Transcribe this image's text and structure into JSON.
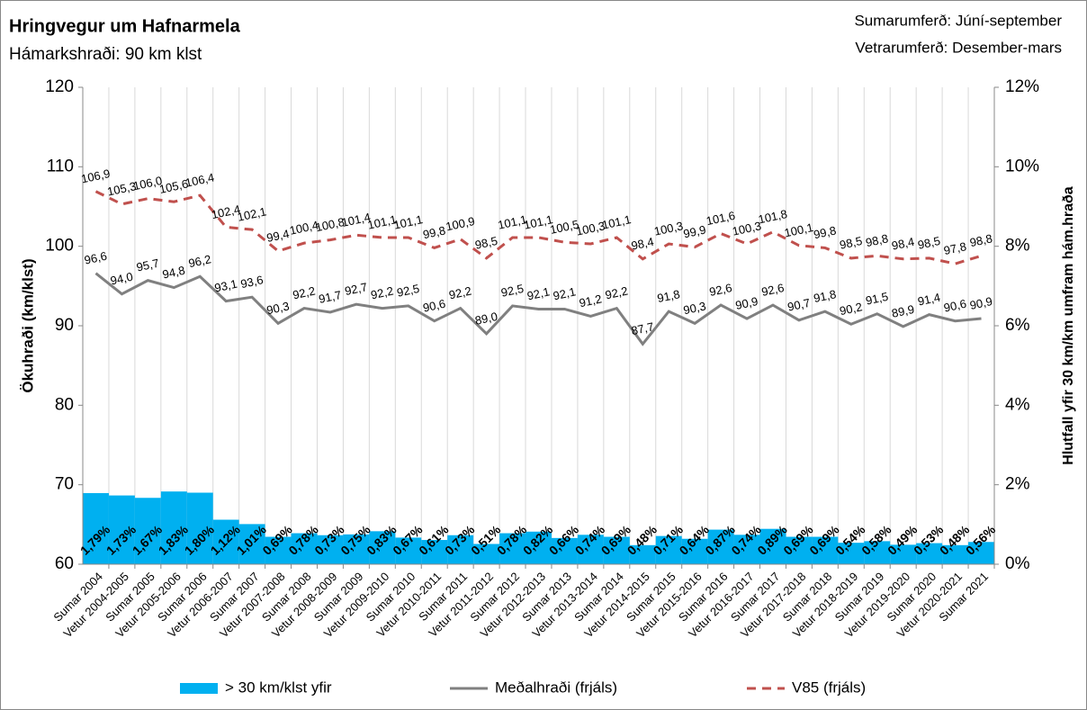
{
  "chart_data": {
    "type": "bar-line",
    "title": "Hringvegur um Hafnarmela",
    "subtitle": "Hámarkshraði: 90 km klst",
    "annotations": [
      "Sumarumferð:  Júní-september",
      "Vetrarumferð:  Desember-mars"
    ],
    "ylabel": "Ökuhraði (km/klst)",
    "y2label": "Hlutfall yfir 30 km/km umfram hám.hraða",
    "categories": [
      "Sumar 2004",
      "Vetur 2004-2005",
      "Sumar 2005",
      "Vetur 2005-2006",
      "Sumar 2006",
      "Vetur 2006-2007",
      "Sumar 2007",
      "Vetur 2007-2008",
      "Sumar 2008",
      "Vetur 2008-2009",
      "Sumar 2009",
      "Vetur 2009-2010",
      "Sumar 2010",
      "Vetur 2010-2011",
      "Sumar 2011",
      "Vetur 2011-2012",
      "Sumar 2012",
      "Vetur 2012-2013",
      "Sumar 2013",
      "Vetur 2013-2014",
      "Sumar 2014",
      "Vetur 2014-2015",
      "Sumar 2015",
      "Vetur 2015-2016",
      "Sumar 2016",
      "Vetur 2016-2017",
      "Sumar 2017",
      "Vetur 2017-2018",
      "Sumar 2018",
      "Vetur 2018-2019",
      "Sumar 2019",
      "Vetur 2019-2020",
      "Sumar 2020",
      "Vetur 2020-2021",
      "Sumar 2021"
    ],
    "series": [
      {
        "name": "> 30 km/klst yfir",
        "type": "bar",
        "axis": "y2",
        "color": "#00b0f0",
        "values": [
          1.79,
          1.73,
          1.67,
          1.83,
          1.8,
          1.12,
          1.01,
          0.69,
          0.78,
          0.73,
          0.75,
          0.83,
          0.67,
          0.61,
          0.73,
          0.51,
          0.78,
          0.82,
          0.66,
          0.74,
          0.69,
          0.48,
          0.71,
          0.64,
          0.87,
          0.74,
          0.89,
          0.69,
          0.69,
          0.54,
          0.58,
          0.49,
          0.53,
          0.48,
          0.56
        ],
        "value_labels": [
          "1,79%",
          "1,73%",
          "1,67%",
          "1,83%",
          "1,80%",
          "1,12%",
          "1,01%",
          "0,69%",
          "0,78%",
          "0,73%",
          "0,75%",
          "0,83%",
          "0,67%",
          "0,61%",
          "0,73%",
          "0,51%",
          "0,78%",
          "0,82%",
          "0,66%",
          "0,74%",
          "0,69%",
          "0,48%",
          "0,71%",
          "0,64%",
          "0,87%",
          "0,74%",
          "0,89%",
          "0,69%",
          "0,69%",
          "0,54%",
          "0,58%",
          "0,49%",
          "0,53%",
          "0,48%",
          "0,56%"
        ]
      },
      {
        "name": "Meðalhraði (frjáls)",
        "type": "line",
        "color": "#808080",
        "dash": false,
        "values": [
          96.6,
          94.0,
          95.7,
          94.8,
          96.2,
          93.1,
          93.6,
          90.3,
          92.2,
          91.7,
          92.7,
          92.2,
          92.5,
          90.6,
          92.2,
          89.0,
          92.5,
          92.1,
          92.1,
          91.2,
          92.2,
          87.7,
          91.8,
          90.3,
          92.6,
          90.9,
          92.6,
          90.7,
          91.8,
          90.2,
          91.5,
          89.9,
          91.4,
          90.6,
          90.9
        ],
        "value_labels": [
          "96,6",
          "94,0",
          "95,7",
          "94,8",
          "96,2",
          "93,1",
          "93,6",
          "90,3",
          "92,2",
          "91,7",
          "92,7",
          "92,2",
          "92,5",
          "90,6",
          "92,2",
          "89,0",
          "92,5",
          "92,1",
          "92,1",
          "91,2",
          "92,2",
          "87,7",
          "91,8",
          "90,3",
          "92,6",
          "90,9",
          "92,6",
          "90,7",
          "91,8",
          "90,2",
          "91,5",
          "89,9",
          "91,4",
          "90,6",
          "90,9"
        ]
      },
      {
        "name": "V85 (frjáls)",
        "type": "line",
        "color": "#c0504d",
        "dash": true,
        "values": [
          106.9,
          105.3,
          106.0,
          105.6,
          106.4,
          102.4,
          102.1,
          99.4,
          100.4,
          100.8,
          101.4,
          101.1,
          101.1,
          99.8,
          100.9,
          98.5,
          101.1,
          101.1,
          100.5,
          100.3,
          101.1,
          98.4,
          100.3,
          99.9,
          101.6,
          100.3,
          101.8,
          100.1,
          99.8,
          98.5,
          98.8,
          98.4,
          98.5,
          97.8,
          98.8
        ],
        "value_labels": [
          "106,9",
          "105,3",
          "106,0",
          "105,6",
          "106,4",
          "102,4",
          "102,1",
          "99,4",
          "100,4",
          "100,8",
          "101,4",
          "101,1",
          "101,1",
          "99,8",
          "100,9",
          "98,5",
          "101,1",
          "101,1",
          "100,5",
          "100,3",
          "101,1",
          "98,4",
          "100,3",
          "99,9",
          "101,6",
          "100,3",
          "101,8",
          "100,1",
          "99,8",
          "98,5",
          "98,8",
          "98,4",
          "98,5",
          "97,8",
          "98,8"
        ]
      }
    ],
    "ylim": [
      60,
      120
    ],
    "yticks": [
      60,
      70,
      80,
      90,
      100,
      110,
      120
    ],
    "y2lim": [
      0,
      12
    ],
    "y2ticks": [
      {
        "value": 0,
        "label": "0%"
      },
      {
        "value": 2,
        "label": "2%"
      },
      {
        "value": 4,
        "label": "4%"
      },
      {
        "value": 6,
        "label": "6%"
      },
      {
        "value": 8,
        "label": "8%"
      },
      {
        "value": 10,
        "label": "10%"
      },
      {
        "value": 12,
        "label": "12%"
      }
    ],
    "xgrid": true,
    "legend": "bottom"
  }
}
